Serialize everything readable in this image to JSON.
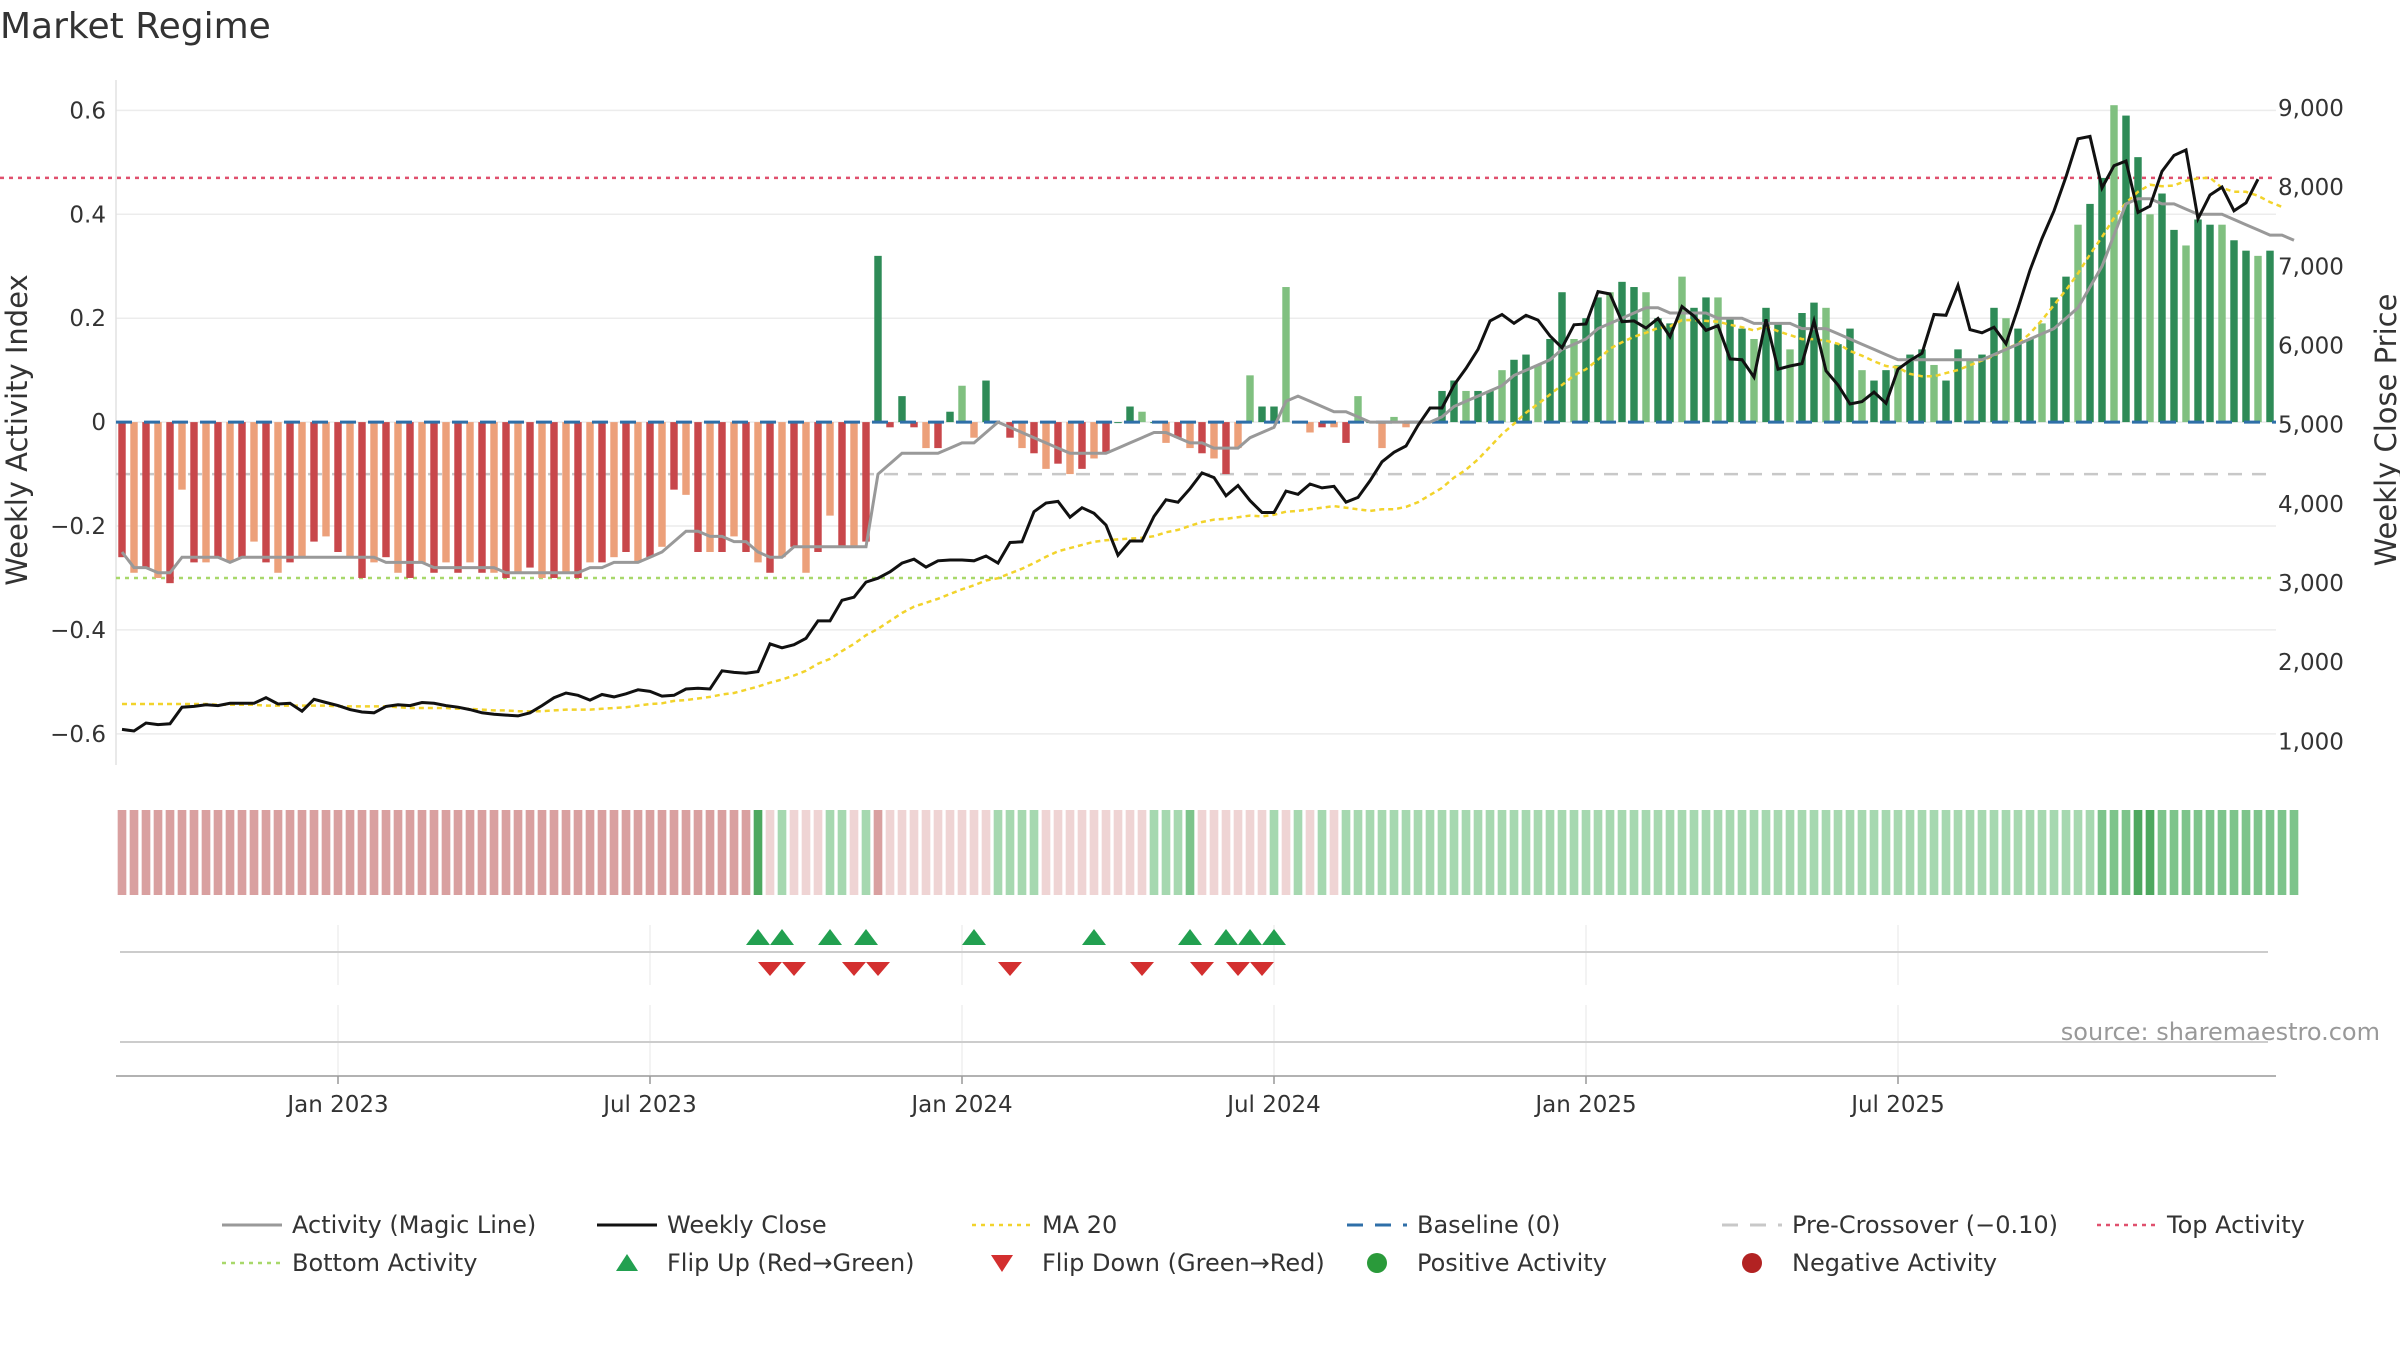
{
  "chart_data": {
    "type": "bar",
    "title": "Market Regime",
    "source": "source: sharemaestro.com",
    "ylabel_left": "Weekly Activity Index",
    "ylabel_right": "Weekly Close Price",
    "y_left_ticks": [
      "0.6",
      "0.4",
      "0.2",
      "0",
      "−0.2",
      "−0.4",
      "−0.6"
    ],
    "y_left_tick_values": [
      0.6,
      0.4,
      0.2,
      0,
      -0.2,
      -0.4,
      -0.6
    ],
    "y_right_ticks": [
      "9,000",
      "8,000",
      "7,000",
      "6,000",
      "5,000",
      "4,000",
      "3,000",
      "2,000",
      "1,000"
    ],
    "y_right_tick_values": [
      9000,
      8000,
      7000,
      6000,
      5000,
      4000,
      3000,
      2000,
      1000
    ],
    "ylim_left": [
      -0.66,
      0.62
    ],
    "ylim_right": [
      700,
      9100
    ],
    "x_ticks": [
      "Jan 2023",
      "Jul 2023",
      "Jan 2024",
      "Jul 2024",
      "Jan 2025",
      "Jul 2025"
    ],
    "x_tick_weeks": [
      18,
      44,
      70,
      96,
      122,
      148
    ],
    "reference_lines": {
      "top_activity": 0.47,
      "bottom_activity": -0.3,
      "baseline": 0,
      "pre_crossover": -0.1
    },
    "activity_bars": [
      -0.26,
      -0.29,
      -0.28,
      -0.3,
      -0.31,
      -0.13,
      -0.27,
      -0.27,
      -0.26,
      -0.27,
      -0.26,
      -0.23,
      -0.27,
      -0.29,
      -0.27,
      -0.26,
      -0.23,
      -0.22,
      -0.25,
      -0.26,
      -0.3,
      -0.27,
      -0.26,
      -0.29,
      -0.3,
      -0.27,
      -0.29,
      -0.27,
      -0.29,
      -0.27,
      -0.29,
      -0.29,
      -0.3,
      -0.29,
      -0.28,
      -0.3,
      -0.3,
      -0.29,
      -0.3,
      -0.27,
      -0.27,
      -0.26,
      -0.25,
      -0.27,
      -0.26,
      -0.24,
      -0.13,
      -0.14,
      -0.25,
      -0.25,
      -0.25,
      -0.22,
      -0.25,
      -0.27,
      -0.29,
      -0.26,
      -0.24,
      -0.29,
      -0.25,
      -0.18,
      -0.24,
      -0.24,
      -0.23,
      0.32,
      -0.01,
      0.05,
      -0.01,
      -0.05,
      -0.05,
      0.02,
      0.07,
      -0.03,
      0.08,
      0.0,
      -0.03,
      -0.05,
      -0.06,
      -0.09,
      -0.08,
      -0.1,
      -0.09,
      -0.07,
      -0.06,
      0.0,
      0.03,
      0.02,
      0.0,
      -0.04,
      -0.03,
      -0.05,
      -0.06,
      -0.07,
      -0.1,
      -0.05,
      0.09,
      0.03,
      0.03,
      0.26,
      0.0,
      -0.02,
      -0.01,
      -0.01,
      -0.04,
      0.05,
      0.0,
      -0.05,
      0.01,
      -0.01,
      0.0,
      0.0,
      0.06,
      0.08,
      0.06,
      0.06,
      0.06,
      0.1,
      0.12,
      0.13,
      0.11,
      0.16,
      0.25,
      0.16,
      0.2,
      0.24,
      0.25,
      0.27,
      0.26,
      0.25,
      0.2,
      0.19,
      0.28,
      0.22,
      0.24,
      0.24,
      0.2,
      0.18,
      0.16,
      0.22,
      0.19,
      0.14,
      0.21,
      0.23,
      0.22,
      0.15,
      0.18,
      0.1,
      0.08,
      0.1,
      0.11,
      0.13,
      0.14,
      0.11,
      0.08,
      0.14,
      0.12,
      0.13,
      0.22,
      0.2,
      0.18,
      0.16,
      0.19,
      0.24,
      0.28,
      0.38,
      0.42,
      0.47,
      0.61,
      0.59,
      0.51,
      0.4,
      0.44,
      0.37,
      0.34,
      0.39,
      0.38,
      0.38,
      0.35,
      0.33,
      0.32,
      0.33
    ],
    "activity_line": [
      -0.25,
      -0.28,
      -0.28,
      -0.29,
      -0.29,
      -0.26,
      -0.26,
      -0.26,
      -0.26,
      -0.27,
      -0.26,
      -0.26,
      -0.26,
      -0.26,
      -0.26,
      -0.26,
      -0.26,
      -0.26,
      -0.26,
      -0.26,
      -0.26,
      -0.26,
      -0.27,
      -0.27,
      -0.27,
      -0.27,
      -0.28,
      -0.28,
      -0.28,
      -0.28,
      -0.28,
      -0.28,
      -0.29,
      -0.29,
      -0.29,
      -0.29,
      -0.29,
      -0.29,
      -0.29,
      -0.28,
      -0.28,
      -0.27,
      -0.27,
      -0.27,
      -0.26,
      -0.25,
      -0.23,
      -0.21,
      -0.21,
      -0.22,
      -0.22,
      -0.23,
      -0.23,
      -0.25,
      -0.26,
      -0.26,
      -0.24,
      -0.24,
      -0.24,
      -0.24,
      -0.24,
      -0.24,
      -0.24,
      -0.1,
      -0.08,
      -0.06,
      -0.06,
      -0.06,
      -0.06,
      -0.05,
      -0.04,
      -0.04,
      -0.02,
      0.0,
      -0.01,
      -0.02,
      -0.03,
      -0.04,
      -0.05,
      -0.06,
      -0.06,
      -0.06,
      -0.06,
      -0.05,
      -0.04,
      -0.03,
      -0.02,
      -0.02,
      -0.03,
      -0.04,
      -0.04,
      -0.05,
      -0.05,
      -0.05,
      -0.03,
      -0.02,
      -0.01,
      0.04,
      0.05,
      0.04,
      0.03,
      0.02,
      0.02,
      0.01,
      0.0,
      0.0,
      0.0,
      0.0,
      0.0,
      0.0,
      0.01,
      0.03,
      0.04,
      0.05,
      0.06,
      0.07,
      0.09,
      0.1,
      0.11,
      0.12,
      0.14,
      0.15,
      0.16,
      0.18,
      0.19,
      0.2,
      0.21,
      0.22,
      0.22,
      0.21,
      0.21,
      0.21,
      0.21,
      0.2,
      0.2,
      0.2,
      0.19,
      0.19,
      0.19,
      0.19,
      0.18,
      0.18,
      0.18,
      0.17,
      0.16,
      0.15,
      0.14,
      0.13,
      0.12,
      0.12,
      0.12,
      0.12,
      0.12,
      0.12,
      0.12,
      0.12,
      0.13,
      0.14,
      0.15,
      0.16,
      0.17,
      0.18,
      0.2,
      0.22,
      0.26,
      0.3,
      0.36,
      0.42,
      0.43,
      0.43,
      0.42,
      0.42,
      0.41,
      0.4,
      0.4,
      0.4,
      0.39,
      0.38,
      0.37,
      0.36,
      0.36,
      0.35
    ],
    "weekly_close": [
      1150,
      1130,
      1230,
      1210,
      1220,
      1430,
      1440,
      1460,
      1450,
      1480,
      1480,
      1480,
      1550,
      1470,
      1480,
      1380,
      1530,
      1490,
      1450,
      1400,
      1370,
      1360,
      1440,
      1460,
      1450,
      1490,
      1480,
      1450,
      1430,
      1400,
      1360,
      1340,
      1330,
      1320,
      1360,
      1450,
      1550,
      1610,
      1580,
      1520,
      1590,
      1560,
      1600,
      1650,
      1630,
      1570,
      1580,
      1660,
      1670,
      1660,
      1890,
      1870,
      1860,
      1880,
      2230,
      2180,
      2220,
      2300,
      2520,
      2520,
      2780,
      2820,
      3010,
      3060,
      3140,
      3250,
      3300,
      3200,
      3280,
      3290,
      3290,
      3280,
      3340,
      3250,
      3510,
      3520,
      3900,
      4010,
      4030,
      3830,
      3950,
      3880,
      3730,
      3350,
      3530,
      3530,
      3840,
      4050,
      4020,
      4190,
      4390,
      4330,
      4100,
      4230,
      4040,
      3890,
      3890,
      4160,
      4120,
      4250,
      4200,
      4220,
      4020,
      4080,
      4290,
      4530,
      4650,
      4730,
      4990,
      5210,
      5210,
      5500,
      5710,
      5950,
      6310,
      6390,
      6280,
      6380,
      6320,
      6120,
      5970,
      6260,
      6270,
      6680,
      6650,
      6300,
      6310,
      6220,
      6340,
      6110,
      6490,
      6370,
      6190,
      6250,
      5830,
      5820,
      5600,
      6330,
      5700,
      5740,
      5770,
      6310,
      5680,
      5500,
      5260,
      5290,
      5410,
      5270,
      5700,
      5810,
      5900,
      6390,
      6380,
      6760,
      6200,
      6160,
      6230,
      6020,
      6470,
      6950,
      7350,
      7700,
      8130,
      8610,
      8640,
      7990,
      8270,
      8330,
      7680,
      7760,
      8200,
      8400,
      8470,
      7600,
      7900,
      8000,
      7700,
      7800,
      8100
    ],
    "ma20": [
      1470,
      1470,
      1470,
      1470,
      1470,
      1470,
      1470,
      1470,
      1460,
      1460,
      1460,
      1460,
      1450,
      1450,
      1450,
      1450,
      1450,
      1450,
      1440,
      1440,
      1440,
      1440,
      1440,
      1430,
      1420,
      1420,
      1420,
      1420,
      1410,
      1410,
      1400,
      1390,
      1390,
      1380,
      1380,
      1380,
      1390,
      1400,
      1400,
      1400,
      1410,
      1420,
      1430,
      1450,
      1470,
      1480,
      1510,
      1520,
      1540,
      1560,
      1590,
      1610,
      1650,
      1690,
      1740,
      1780,
      1830,
      1890,
      1980,
      2040,
      2140,
      2230,
      2340,
      2420,
      2520,
      2620,
      2700,
      2750,
      2800,
      2860,
      2920,
      2970,
      3030,
      3060,
      3120,
      3180,
      3250,
      3330,
      3400,
      3440,
      3480,
      3520,
      3540,
      3550,
      3560,
      3570,
      3590,
      3640,
      3670,
      3720,
      3770,
      3800,
      3810,
      3830,
      3850,
      3840,
      3860,
      3900,
      3910,
      3930,
      3950,
      3970,
      3950,
      3930,
      3910,
      3930,
      3930,
      3960,
      4020,
      4110,
      4200,
      4330,
      4430,
      4560,
      4720,
      4880,
      5010,
      5150,
      5260,
      5380,
      5500,
      5620,
      5700,
      5820,
      5960,
      6040,
      6110,
      6160,
      6220,
      6240,
      6320,
      6320,
      6310,
      6300,
      6260,
      6230,
      6190,
      6240,
      6180,
      6130,
      6080,
      6080,
      6060,
      6020,
      5930,
      5870,
      5800,
      5740,
      5720,
      5640,
      5610,
      5610,
      5650,
      5690,
      5750,
      5810,
      5870,
      5960,
      6020,
      6150,
      6320,
      6510,
      6700,
      6910,
      7150,
      7370,
      7610,
      7800,
      7940,
      8030,
      8010,
      8020,
      8080,
      8110,
      8120,
      7990,
      7940,
      7940,
      7890,
      7810,
      7750
    ],
    "regime_strip": [
      -1,
      -1,
      -1,
      -1,
      -1,
      -1,
      -1,
      -1,
      -1,
      -1,
      -1,
      -1,
      -1,
      -1,
      -1,
      -1,
      -1,
      -1,
      -1,
      -1,
      -1,
      -1,
      -1,
      -1,
      -1,
      -1,
      -1,
      -1,
      -1,
      -1,
      -1,
      -1,
      -1,
      -1,
      -1,
      -1,
      -1,
      -1,
      -1,
      -1,
      -1,
      -1,
      -1,
      -1,
      -1,
      -1,
      -1,
      -1,
      -1,
      -1,
      -1,
      -1,
      -1,
      3,
      -2,
      1,
      -2,
      -2,
      -2,
      1,
      1,
      -2,
      1,
      -1,
      -2,
      -2,
      -2,
      -2,
      -2,
      -2,
      -2,
      -2,
      -2,
      1,
      1,
      1,
      1,
      -2,
      -2,
      -2,
      -2,
      -2,
      -2,
      -2,
      -2,
      -2,
      1,
      1,
      1,
      2,
      -2,
      -2,
      -2,
      -2,
      -2,
      -2,
      1,
      -2,
      1,
      -2,
      1,
      -2,
      1,
      1,
      1,
      1,
      1,
      1,
      1,
      1,
      1,
      1,
      1,
      1,
      1,
      1,
      1,
      1,
      1,
      1,
      1,
      1,
      1,
      1,
      1,
      1,
      1,
      1,
      1,
      1,
      1,
      1,
      1,
      1,
      1,
      1,
      1,
      1,
      1,
      1,
      1,
      1,
      1,
      1,
      1,
      1,
      1,
      1,
      1,
      1,
      1,
      1,
      1,
      1,
      1,
      1,
      1,
      1,
      1,
      1,
      1,
      1,
      1,
      1,
      1,
      2,
      2,
      2,
      3,
      3,
      2,
      2,
      2,
      2,
      2,
      2,
      2,
      2,
      2,
      2,
      2,
      2
    ],
    "flip_up_weeks": [
      53,
      55,
      59,
      62,
      71,
      81,
      89,
      92,
      94,
      96
    ],
    "flip_down_weeks": [
      54,
      56,
      61,
      63,
      74,
      85,
      90,
      93,
      95
    ],
    "legend": [
      {
        "label": "Activity (Magic Line)",
        "symbol": "line",
        "color": "#999999"
      },
      {
        "label": "Weekly Close",
        "symbol": "line",
        "color": "#111111"
      },
      {
        "label": "MA 20",
        "symbol": "dotted",
        "color": "#f2d32b"
      },
      {
        "label": "Baseline (0)",
        "symbol": "dashed",
        "color": "#2f6fa8"
      },
      {
        "label": "Pre-Crossover (−0.10)",
        "symbol": "dashed",
        "color": "#c8c8c8"
      },
      {
        "label": "Top Activity",
        "symbol": "dotted",
        "color": "#e0506e"
      },
      {
        "label": "Bottom Activity",
        "symbol": "dotted",
        "color": "#a8d86a"
      },
      {
        "label": "Flip Up (Red→Green)",
        "symbol": "triangle-up",
        "color": "#22a050"
      },
      {
        "label": "Flip Down (Green→Red)",
        "symbol": "triangle-down",
        "color": "#d32f2f"
      },
      {
        "label": "Positive Activity",
        "symbol": "circle",
        "color": "#2a9a3a"
      },
      {
        "label": "Negative Activity",
        "symbol": "circle",
        "color": "#b22222"
      }
    ],
    "colors": {
      "pos_strong": "#2e8b57",
      "pos_light": "#80c080",
      "neg_strong": "#c8474b",
      "neg_light": "#eca07a",
      "activity_line": "#999999",
      "weekly_close": "#111111",
      "ma20": "#f2d32b",
      "baseline": "#2f6fa8",
      "pre_crossover": "#c8c8c8",
      "top_activity": "#e0506e",
      "bottom_activity": "#a8d86a",
      "strip_neg_strong": "#d9a0a0",
      "strip_neg_light": "#efd4d4",
      "strip_pos_1": "#a6d8b0",
      "strip_pos_2": "#7dc48b",
      "strip_pos_3": "#4ea85f",
      "flip_up": "#22a050",
      "flip_down": "#d32f2f"
    },
    "grid": true,
    "legend_position": "bottom"
  }
}
